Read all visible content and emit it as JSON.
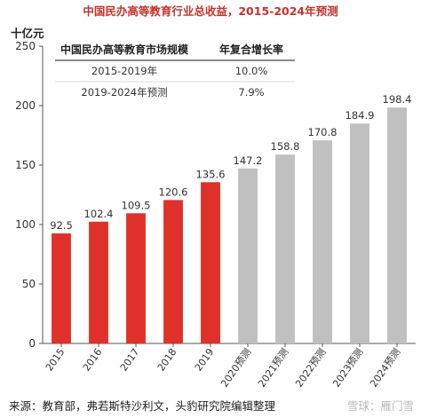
{
  "chart_data": {
    "type": "bar",
    "title": "中国民办高等教育行业总收益，2015-2024年预测",
    "unit_label": "十亿元",
    "categories": [
      "2015",
      "2016",
      "2017",
      "2018",
      "2019",
      "2020预测",
      "2021预测",
      "2022预测",
      "2023预测",
      "2024预测"
    ],
    "values": [
      92.5,
      102.4,
      109.5,
      120.6,
      135.6,
      147.2,
      158.8,
      170.8,
      184.9,
      198.4
    ],
    "value_labels": [
      "92.5",
      "102.4",
      "109.5",
      "120.6",
      "135.6",
      "147.2",
      "158.8",
      "170.8",
      "184.9",
      "198.4"
    ],
    "bar_groups": [
      "actual",
      "actual",
      "actual",
      "actual",
      "actual",
      "forecast",
      "forecast",
      "forecast",
      "forecast",
      "forecast"
    ],
    "y_ticks": [
      "0",
      "50",
      "100",
      "150",
      "200",
      "250"
    ],
    "ylim": [
      0,
      250
    ],
    "grid": false,
    "colors": {
      "actual": "#e0302a",
      "forecast": "#c0c0c0",
      "title": "#c8322b"
    },
    "table": {
      "headers": [
        "中国民办高等教育市场规模",
        "年复合增长率"
      ],
      "rows": [
        [
          "2015-2019年",
          "10.0%"
        ],
        [
          "2019-2024年预测",
          "7.9%"
        ]
      ]
    },
    "source": "来源：教育部，弗若斯特沙利文，头豹研究院编辑整理",
    "watermark": "雪球：雁门雪"
  }
}
